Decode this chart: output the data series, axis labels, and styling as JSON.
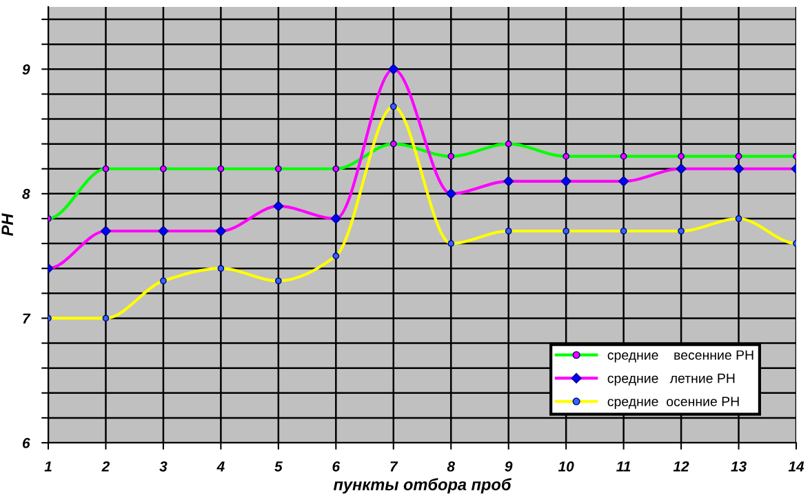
{
  "chart_data": {
    "type": "line",
    "xlabel": "пункты отбора проб",
    "ylabel": "PH",
    "categories": [
      "1",
      "2",
      "3",
      "4",
      "5",
      "6",
      "7",
      "8",
      "9",
      "10",
      "11",
      "12",
      "13",
      "14"
    ],
    "series": [
      {
        "name": "средние    весенние PH",
        "color": "#00ff00",
        "marker": "circle",
        "values": [
          7.8,
          8.2,
          8.2,
          8.2,
          8.2,
          8.2,
          8.4,
          8.3,
          8.4,
          8.3,
          8.3,
          8.3,
          8.3,
          8.3
        ]
      },
      {
        "name": "средние   летние PH",
        "color": "#ff00ff",
        "marker": "diamond",
        "values": [
          7.4,
          7.7,
          7.7,
          7.7,
          7.9,
          7.8,
          9.0,
          8.0,
          8.1,
          8.1,
          8.1,
          8.2,
          8.2,
          8.2
        ]
      },
      {
        "name": "средние  осенние PH",
        "color": "#ffff00",
        "marker": "circle",
        "values": [
          7.0,
          7.0,
          7.3,
          7.4,
          7.3,
          7.5,
          8.7,
          7.6,
          7.7,
          7.7,
          7.7,
          7.7,
          7.8,
          7.6
        ]
      }
    ],
    "ylim": [
      6,
      9.5
    ],
    "yticks": [
      6,
      {
        "value": 6.2,
        "label": null
      },
      {
        "value": 6.4,
        "label": null
      },
      {
        "value": 6.6,
        "label": null
      },
      {
        "value": 6.8,
        "label": null
      },
      7,
      {
        "value": 7.2,
        "label": null
      },
      {
        "value": 7.4,
        "label": null
      },
      {
        "value": 7.6,
        "label": null
      },
      {
        "value": 7.8,
        "label": null
      },
      8,
      {
        "value": 8.2,
        "label": null
      },
      {
        "value": 8.4,
        "label": null
      },
      {
        "value": 8.6,
        "label": null
      },
      {
        "value": 8.8,
        "label": null
      },
      9,
      {
        "value": 9.2,
        "label": null
      },
      {
        "value": 9.4,
        "label": null
      }
    ],
    "grid": true,
    "legend": "bottom right",
    "line_style": "solid"
  }
}
